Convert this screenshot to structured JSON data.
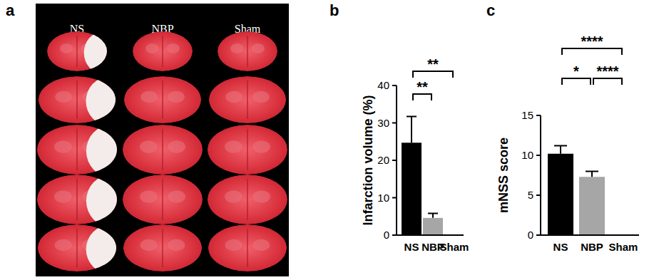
{
  "figure": {
    "panel_labels": [
      "a",
      "b",
      "c"
    ],
    "slice_columns": [
      "NS",
      "NBP",
      "Sham"
    ]
  },
  "chart_data": [
    {
      "type": "bar",
      "y_label": "Infarction volume (%)",
      "categories": [
        "NS",
        "NBP",
        "Sham"
      ],
      "values": [
        24.7,
        4.6,
        0
      ],
      "errors": [
        7.0,
        1.2,
        0
      ],
      "colors": [
        "#000000",
        "#a6a6a6",
        "#000000"
      ],
      "ylim": [
        0,
        40
      ],
      "yticks": [
        0,
        10,
        20,
        30,
        40
      ],
      "grid": false,
      "annotations": [
        {
          "between": [
            "NS",
            "NBP"
          ],
          "text": "**"
        },
        {
          "between": [
            "NS",
            "Sham"
          ],
          "text": "**"
        }
      ]
    },
    {
      "type": "bar",
      "y_label": "mNSS score",
      "categories": [
        "NS",
        "NBP",
        "Sham"
      ],
      "values": [
        10.2,
        7.3,
        0
      ],
      "errors": [
        1.0,
        0.7,
        0
      ],
      "colors": [
        "#000000",
        "#a6a6a6",
        "#000000"
      ],
      "ylim": [
        0,
        15
      ],
      "yticks": [
        0,
        5,
        10,
        15
      ],
      "grid": false,
      "annotations": [
        {
          "between": [
            "NS",
            "NBP"
          ],
          "text": "*"
        },
        {
          "between": [
            "NBP",
            "Sham"
          ],
          "text": "****"
        },
        {
          "between": [
            "NS",
            "Sham"
          ],
          "text": "****"
        }
      ]
    }
  ]
}
